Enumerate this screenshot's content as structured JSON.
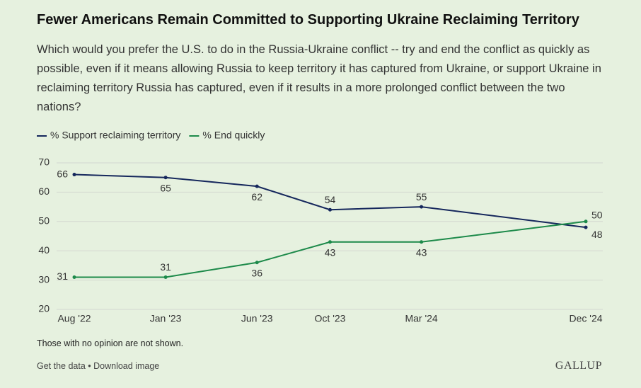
{
  "chart_data": {
    "type": "line",
    "title": "Fewer Americans Remain Committed to Supporting Ukraine Reclaiming Territory",
    "subtitle": "Which would you prefer the U.S. to do in the Russia-Ukraine conflict -- try and end the conflict as quickly as possible, even if it means allowing Russia to keep territory it has captured from Ukraine, or support Ukraine in reclaiming territory Russia has captured, even if it results in a more prolonged conflict between the two nations?",
    "x": [
      "2022-08",
      "2023-01",
      "2023-06",
      "2023-10",
      "2024-03",
      "2024-12"
    ],
    "xlim": [
      "2022-08",
      "2024-12"
    ],
    "xticks": [
      {
        "value": "2022-08",
        "label": "Aug '22"
      },
      {
        "value": "2023-01",
        "label": "Jan '23"
      },
      {
        "value": "2023-06",
        "label": "Jun '23"
      },
      {
        "value": "2023-10",
        "label": "Oct '23"
      },
      {
        "value": "2024-03",
        "label": "Mar '24"
      },
      {
        "value": "2024-12",
        "label": "Dec '24"
      }
    ],
    "ylim": [
      20,
      70
    ],
    "yticks": [
      20,
      30,
      40,
      50,
      60,
      70
    ],
    "grid": true,
    "series": [
      {
        "name": "% Support reclaiming territory",
        "color": "#15275c",
        "values": [
          66,
          65,
          62,
          54,
          55,
          48
        ]
      },
      {
        "name": "% End quickly",
        "color": "#1d8a4a",
        "values": [
          31,
          31,
          36,
          43,
          43,
          50
        ]
      }
    ],
    "note": "Those with no opinion are not shown.",
    "footer": "Get the data • Download image",
    "brand": "GALLUP"
  }
}
